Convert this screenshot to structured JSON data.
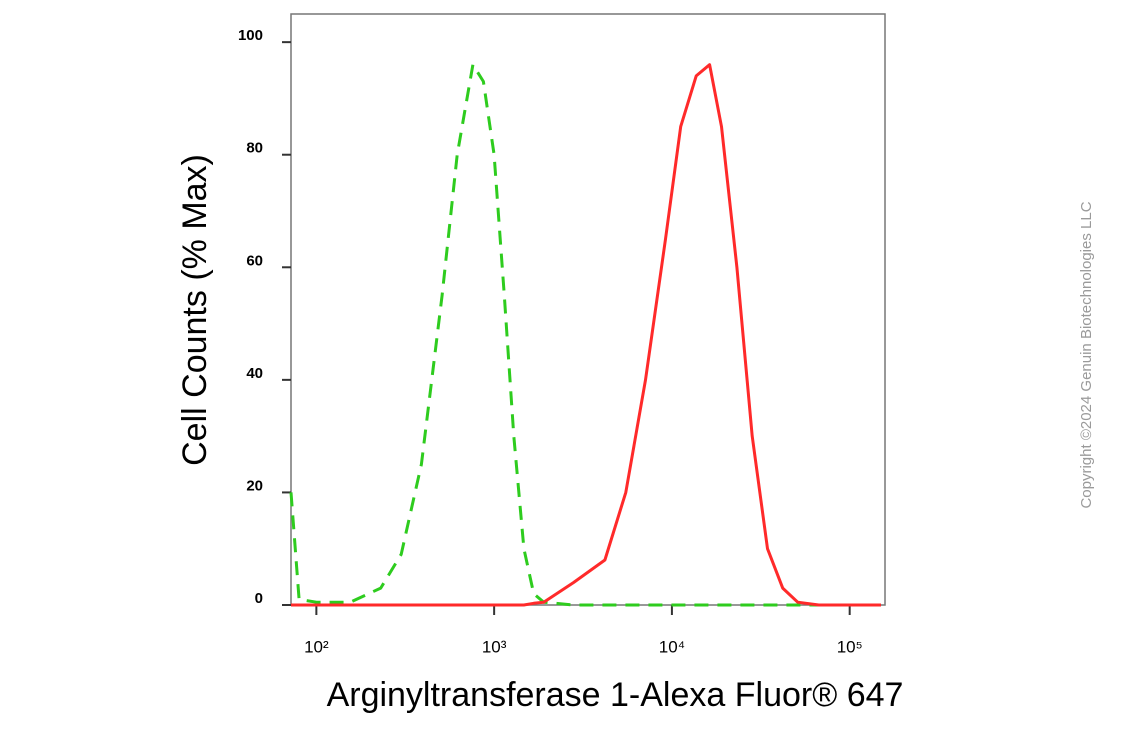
{
  "chart_data": {
    "type": "line",
    "x_label": "Arginyltransferase 1-Alexa Fluor® 647",
    "y_label": "Cell Counts (% Max)",
    "watermark": "Copyright ©2024 Genuin Biotechnologies LLC",
    "x_scale": "log",
    "xlim": [
      72,
      158000
    ],
    "xticks": [
      {
        "value": 100,
        "label": "10²"
      },
      {
        "value": 1000,
        "label": "10³"
      },
      {
        "value": 10000,
        "label": "10⁴"
      },
      {
        "value": 100000,
        "label": "10⁵"
      }
    ],
    "ylim": [
      0,
      105
    ],
    "yticks": [
      0,
      20,
      40,
      60,
      80,
      100
    ],
    "x": [
      72,
      80,
      100,
      155,
      230,
      300,
      390,
      510,
      620,
      760,
      870,
      1000,
      1140,
      1290,
      1470,
      1670,
      1900,
      2800,
      4200,
      5500,
      7100,
      9200,
      11200,
      13700,
      16300,
      19000,
      23200,
      28300,
      34500,
      42000,
      51000,
      67000,
      150000
    ],
    "series": [
      {
        "color": "#2ecc1e",
        "dashed": true,
        "values": [
          20,
          1,
          0.5,
          0.5,
          3,
          9,
          25,
          55,
          80,
          96,
          93,
          80,
          55,
          30,
          10,
          2,
          0.5,
          0,
          0,
          0,
          0,
          0,
          0,
          0,
          0,
          0,
          0,
          0,
          0,
          0,
          0,
          0,
          0
        ]
      },
      {
        "color": "#ff2a2a",
        "dashed": false,
        "values": [
          0,
          0,
          0,
          0,
          0,
          0,
          0,
          0,
          0,
          0,
          0,
          0,
          0,
          0,
          0,
          0.3,
          0.5,
          4,
          8,
          20,
          40,
          65,
          85,
          94,
          96,
          85,
          60,
          30,
          10,
          3,
          0.5,
          0,
          0
        ]
      }
    ]
  }
}
